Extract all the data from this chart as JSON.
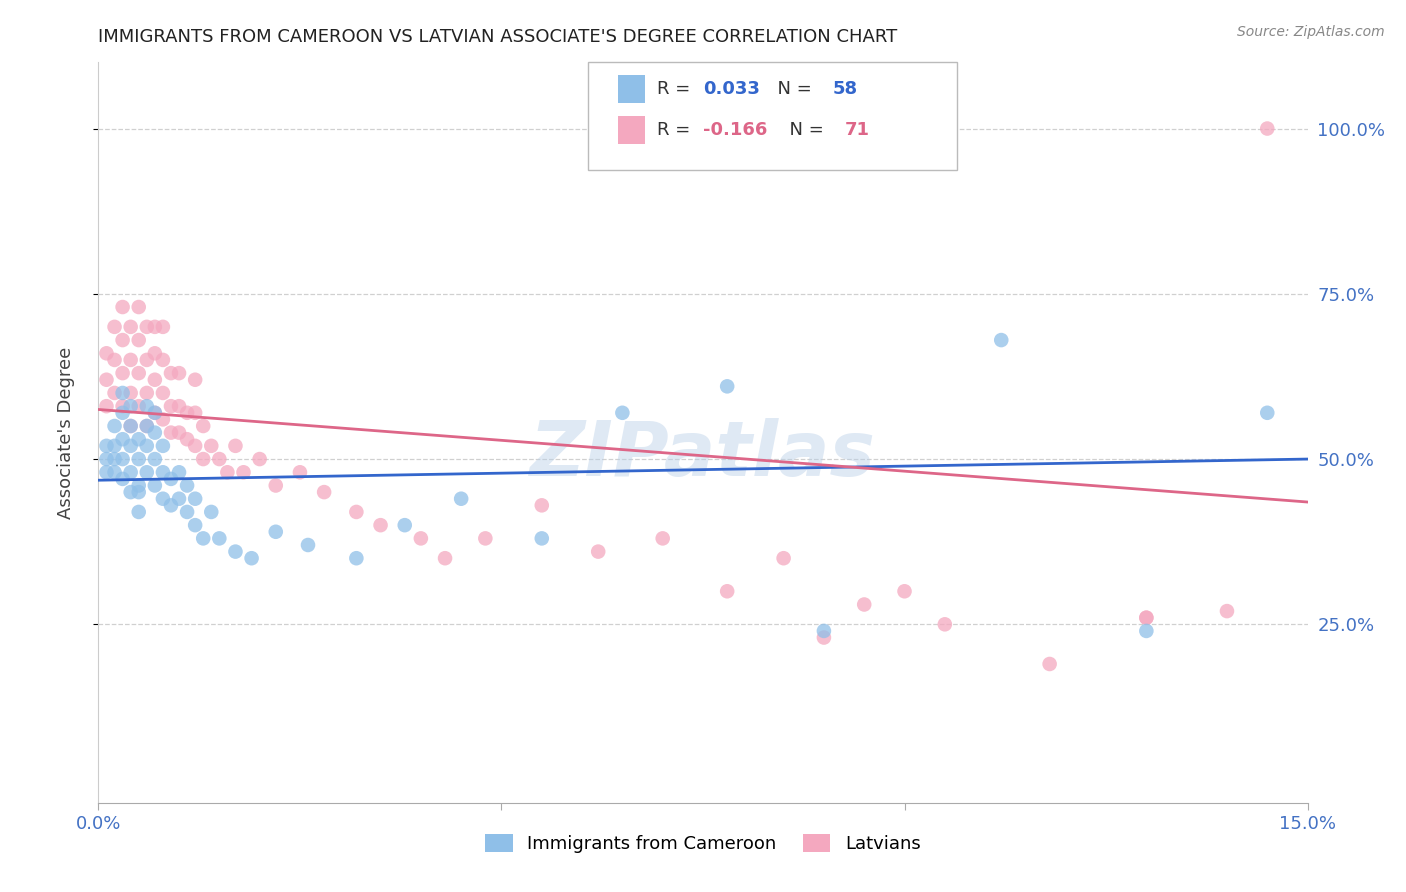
{
  "title": "IMMIGRANTS FROM CAMEROON VS LATVIAN ASSOCIATE'S DEGREE CORRELATION CHART",
  "source": "Source: ZipAtlas.com",
  "ylabel": "Associate's Degree",
  "y_tick_labels": [
    "100.0%",
    "75.0%",
    "50.0%",
    "25.0%"
  ],
  "y_tick_values": [
    1.0,
    0.75,
    0.5,
    0.25
  ],
  "xlim": [
    0.0,
    0.15
  ],
  "ylim": [
    -0.02,
    1.1
  ],
  "plot_ylim": [
    0.0,
    1.0
  ],
  "legend_labels_bottom": [
    "Immigrants from Cameroon",
    "Latvians"
  ],
  "blue_color": "#8fbfe8",
  "pink_color": "#f4a8bf",
  "blue_line_color": "#3366cc",
  "pink_line_color": "#dd6688",
  "axis_label_color": "#4472c4",
  "title_color": "#222222",
  "watermark": "ZIPatlas",
  "blue_line_y0": 0.468,
  "blue_line_y1": 0.5,
  "pink_line_y0": 0.575,
  "pink_line_y1": 0.435,
  "blue_scatter_x": [
    0.001,
    0.001,
    0.001,
    0.002,
    0.002,
    0.002,
    0.002,
    0.003,
    0.003,
    0.003,
    0.003,
    0.003,
    0.004,
    0.004,
    0.004,
    0.004,
    0.004,
    0.005,
    0.005,
    0.005,
    0.005,
    0.005,
    0.006,
    0.006,
    0.006,
    0.006,
    0.007,
    0.007,
    0.007,
    0.007,
    0.008,
    0.008,
    0.008,
    0.009,
    0.009,
    0.01,
    0.01,
    0.011,
    0.011,
    0.012,
    0.012,
    0.013,
    0.014,
    0.015,
    0.017,
    0.019,
    0.022,
    0.026,
    0.032,
    0.038,
    0.045,
    0.055,
    0.065,
    0.078,
    0.09,
    0.112,
    0.13,
    0.145
  ],
  "blue_scatter_y": [
    0.5,
    0.48,
    0.52,
    0.5,
    0.48,
    0.52,
    0.55,
    0.47,
    0.5,
    0.53,
    0.57,
    0.6,
    0.45,
    0.48,
    0.52,
    0.55,
    0.58,
    0.46,
    0.5,
    0.53,
    0.45,
    0.42,
    0.48,
    0.52,
    0.55,
    0.58,
    0.46,
    0.5,
    0.54,
    0.57,
    0.44,
    0.48,
    0.52,
    0.43,
    0.47,
    0.44,
    0.48,
    0.42,
    0.46,
    0.4,
    0.44,
    0.38,
    0.42,
    0.38,
    0.36,
    0.35,
    0.39,
    0.37,
    0.35,
    0.4,
    0.44,
    0.38,
    0.57,
    0.61,
    0.24,
    0.68,
    0.24,
    0.57
  ],
  "pink_scatter_x": [
    0.001,
    0.001,
    0.001,
    0.002,
    0.002,
    0.002,
    0.003,
    0.003,
    0.003,
    0.003,
    0.004,
    0.004,
    0.004,
    0.004,
    0.005,
    0.005,
    0.005,
    0.005,
    0.006,
    0.006,
    0.006,
    0.006,
    0.007,
    0.007,
    0.007,
    0.007,
    0.008,
    0.008,
    0.008,
    0.008,
    0.009,
    0.009,
    0.009,
    0.01,
    0.01,
    0.01,
    0.011,
    0.011,
    0.012,
    0.012,
    0.012,
    0.013,
    0.013,
    0.014,
    0.015,
    0.016,
    0.017,
    0.018,
    0.02,
    0.022,
    0.025,
    0.028,
    0.032,
    0.035,
    0.04,
    0.043,
    0.048,
    0.055,
    0.062,
    0.07,
    0.078,
    0.085,
    0.095,
    0.105,
    0.118,
    0.13,
    0.14,
    0.145,
    0.1,
    0.09,
    0.13
  ],
  "pink_scatter_y": [
    0.58,
    0.62,
    0.66,
    0.6,
    0.65,
    0.7,
    0.58,
    0.63,
    0.68,
    0.73,
    0.55,
    0.6,
    0.65,
    0.7,
    0.58,
    0.63,
    0.68,
    0.73,
    0.55,
    0.6,
    0.65,
    0.7,
    0.57,
    0.62,
    0.66,
    0.7,
    0.56,
    0.6,
    0.65,
    0.7,
    0.54,
    0.58,
    0.63,
    0.54,
    0.58,
    0.63,
    0.53,
    0.57,
    0.52,
    0.57,
    0.62,
    0.5,
    0.55,
    0.52,
    0.5,
    0.48,
    0.52,
    0.48,
    0.5,
    0.46,
    0.48,
    0.45,
    0.42,
    0.4,
    0.38,
    0.35,
    0.38,
    0.43,
    0.36,
    0.38,
    0.3,
    0.35,
    0.28,
    0.25,
    0.19,
    0.26,
    0.27,
    1.0,
    0.3,
    0.23,
    0.26
  ]
}
